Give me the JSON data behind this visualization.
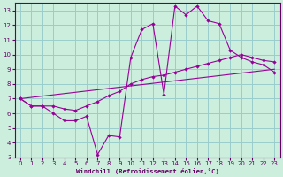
{
  "xlabel": "Windchill (Refroidissement éolien,°C)",
  "bg_color": "#cceedd",
  "grid_color": "#99cccc",
  "line_color": "#990099",
  "xlim": [
    -0.5,
    23.5
  ],
  "ylim": [
    3,
    13.5
  ],
  "xticks": [
    0,
    1,
    2,
    3,
    4,
    5,
    6,
    7,
    8,
    9,
    10,
    11,
    12,
    13,
    14,
    15,
    16,
    17,
    18,
    19,
    20,
    21,
    22,
    23
  ],
  "yticks": [
    3,
    4,
    5,
    6,
    7,
    8,
    9,
    10,
    11,
    12,
    13
  ],
  "line1_x": [
    0,
    1,
    2,
    3,
    4,
    5,
    6,
    7,
    8,
    9,
    10,
    11,
    12,
    13,
    14,
    15,
    16,
    17,
    18,
    19,
    20,
    21,
    22,
    23
  ],
  "line1_y": [
    7.0,
    6.5,
    6.5,
    6.0,
    5.5,
    5.5,
    5.8,
    3.2,
    4.5,
    4.4,
    9.8,
    11.7,
    12.1,
    7.3,
    13.3,
    12.7,
    13.3,
    12.3,
    12.1,
    10.3,
    9.8,
    9.5,
    9.3,
    8.8
  ],
  "line2_x": [
    0,
    1,
    2,
    3,
    4,
    5,
    6,
    7,
    8,
    9,
    10,
    11,
    12,
    13,
    14,
    15,
    16,
    17,
    18,
    19,
    20,
    21,
    22,
    23
  ],
  "line2_y": [
    7.0,
    6.5,
    6.5,
    6.5,
    6.3,
    6.2,
    6.5,
    6.8,
    7.2,
    7.5,
    8.0,
    8.3,
    8.5,
    8.6,
    8.8,
    9.0,
    9.2,
    9.4,
    9.6,
    9.8,
    10.0,
    9.8,
    9.6,
    9.5
  ],
  "line3_x": [
    0,
    23
  ],
  "line3_y": [
    7.0,
    9.0
  ]
}
